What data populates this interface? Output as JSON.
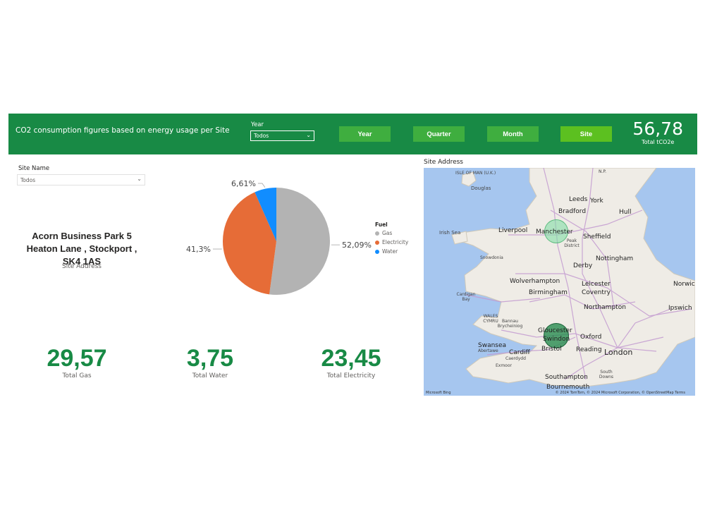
{
  "banner": {
    "title": "CO2 consumption figures based on energy usage per Site",
    "year_label": "Year",
    "year_value": "Todos",
    "buttons": [
      "Year",
      "Quarter",
      "Month",
      "Site"
    ],
    "active_button": "Site",
    "total_value": "56,78",
    "total_label": "Total tCO2e"
  },
  "site_filter": {
    "label": "Site Name",
    "value": "Todos"
  },
  "address": {
    "lines": [
      "Acorn Business Park 5",
      "Heaton Lane , Stockport ,",
      "SK4 1AS"
    ],
    "caption": "Site Address"
  },
  "chart_data": {
    "type": "pie",
    "legend_title": "Fuel",
    "legend_placement": "right",
    "categories": [
      "Gas",
      "Electricity",
      "Water"
    ],
    "values": [
      52.09,
      41.3,
      6.61
    ],
    "labels": [
      "52,09%",
      "41,3%",
      "6,61%"
    ],
    "colors": [
      "#b3b3b3",
      "#e66c37",
      "#118dff"
    ]
  },
  "kpis": [
    {
      "value": "29,57",
      "label": "Total Gas"
    },
    {
      "value": "3,75",
      "label": "Total Water"
    },
    {
      "value": "23,45",
      "label": "Total Electricity"
    }
  ],
  "map": {
    "title": "Site Address",
    "places_major": [
      "Leeds",
      "York",
      "Hull",
      "Bradford",
      "Manchester",
      "Sheffield",
      "Nottingham",
      "Derby",
      "Leicester",
      "Coventry",
      "Birmingham",
      "Wolverhampton",
      "Northampton",
      "Oxford",
      "Reading",
      "London",
      "Bristol",
      "Cardiff",
      "Swansea",
      "Southampton",
      "Bournemouth",
      "Gloucester",
      "Swindon",
      "Liverpool",
      "Ipswich",
      "Norwich"
    ],
    "places_minor": [
      "ISLE OF MAN (U.K.)",
      "Douglas",
      "Irish Sea",
      "Snowdonia",
      "Cardigan Bay",
      "WALES CYMRU",
      "Bannau Brycheiniog",
      "Abertawe",
      "Caerdydd",
      "Exmoor",
      "Peak District",
      "South Downs",
      "N.P."
    ],
    "attribution": "© 2024 TomTom, © 2024 Microsoft Corporation, © OpenStreetMap  Terms",
    "brand": "Microsoft Bing"
  }
}
